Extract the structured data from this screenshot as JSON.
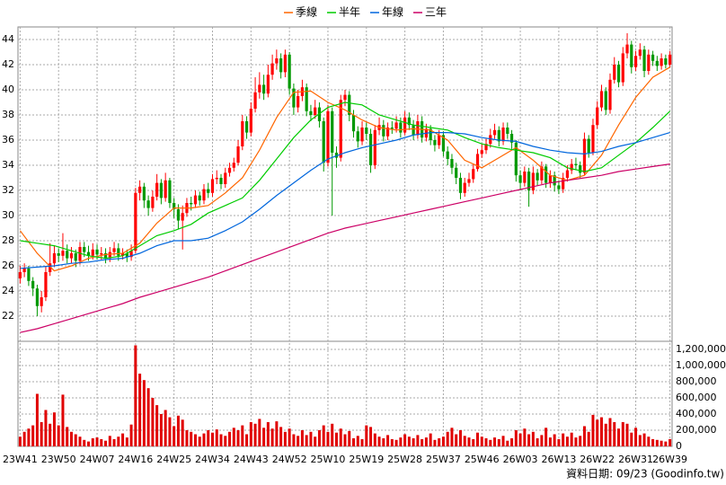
{
  "chart_data": {
    "type": "candlestick",
    "categories": [
      "23W41",
      null,
      null,
      null,
      null,
      null,
      null,
      null,
      null,
      "23W50",
      null,
      null,
      null,
      null,
      null,
      null,
      null,
      null,
      "24W07",
      null,
      null,
      null,
      null,
      null,
      null,
      null,
      null,
      "24W16",
      null,
      null,
      null,
      null,
      null,
      null,
      null,
      null,
      "24W25",
      null,
      null,
      null,
      null,
      null,
      null,
      null,
      null,
      "24W34",
      null,
      null,
      null,
      null,
      null,
      null,
      null,
      null,
      "24W43",
      null,
      null,
      null,
      null,
      null,
      null,
      null,
      null,
      "24W52",
      null,
      null,
      null,
      null,
      null,
      null,
      null,
      null,
      "25W10",
      null,
      null,
      null,
      null,
      null,
      null,
      null,
      null,
      "25W19",
      null,
      null,
      null,
      null,
      null,
      null,
      null,
      null,
      "25W28",
      null,
      null,
      null,
      null,
      null,
      null,
      null,
      null,
      "25W37",
      null,
      null,
      null,
      null,
      null,
      null,
      null,
      null,
      "25W46",
      null,
      null,
      null,
      null,
      null,
      null,
      null,
      null,
      "26W03",
      null,
      null,
      null,
      null,
      null,
      null,
      null,
      null,
      "26W13",
      null,
      null,
      null,
      null,
      null,
      null,
      null,
      null,
      "26W22",
      null,
      null,
      null,
      null,
      null,
      null,
      null,
      null,
      "26W31",
      null,
      null,
      null,
      null,
      null,
      null,
      null,
      "26W39"
    ],
    "open": [
      25.0,
      25.5,
      25.8,
      24.8,
      24.2,
      22.8,
      23.5,
      25.5,
      26.2,
      27.0,
      26.8,
      27.2,
      26.6,
      27.0,
      26.4,
      27.5,
      27.1,
      26.8,
      27.3,
      26.9,
      27.0,
      26.6,
      27.1,
      27.4,
      26.8,
      27.0,
      26.7,
      27.2,
      31.8,
      32.3,
      31.2,
      30.6,
      31.5,
      32.6,
      31.4,
      32.8,
      31.0,
      30.5,
      29.6,
      30.2,
      31.0,
      30.9,
      31.6,
      31.2,
      32.1,
      31.8,
      32.9,
      33.0,
      32.5,
      33.4,
      33.8,
      34.2,
      35.5,
      37.5,
      36.6,
      38.5,
      39.8,
      40.4,
      39.7,
      41.2,
      42.1,
      42.5,
      41.4,
      42.8,
      40.1,
      38.6,
      39.5,
      40.2,
      38.3,
      38.0,
      38.6,
      37.5,
      34.2,
      38.3,
      35.0,
      34.6,
      39.2,
      39.6,
      38.0,
      36.7,
      35.9,
      37.0,
      36.5,
      34.0,
      36.8,
      37.2,
      36.3,
      37.0,
      36.9,
      37.4,
      36.6,
      37.8,
      37.2,
      36.4,
      37.5,
      36.2,
      36.9,
      36.0,
      35.6,
      36.4,
      35.1,
      34.5,
      33.8,
      33.0,
      31.8,
      32.6,
      32.9,
      33.7,
      34.9,
      35.2,
      35.7,
      36.4,
      36.8,
      35.9,
      37.0,
      36.5,
      35.8,
      33.2,
      32.6,
      33.5,
      32.0,
      33.4,
      32.8,
      33.9,
      32.6,
      33.2,
      32.4,
      32.1,
      33.0,
      33.6,
      34.1,
      34.0,
      33.4,
      36.1,
      35.0,
      37.2,
      38.6,
      39.9,
      38.4,
      40.8,
      42.0,
      40.6,
      42.9,
      43.6,
      41.8,
      42.7,
      43.2,
      41.5,
      42.8,
      42.3,
      41.9,
      42.5,
      42.0
    ],
    "high": [
      26.0,
      26.2,
      26.0,
      25.1,
      24.5,
      24.0,
      26.0,
      27.8,
      27.6,
      27.4,
      28.6,
      27.7,
      27.5,
      27.3,
      27.9,
      27.9,
      27.6,
      27.8,
      27.7,
      27.5,
      27.4,
      27.5,
      27.9,
      27.8,
      27.4,
      27.3,
      27.7,
      32.2,
      32.8,
      32.6,
      31.6,
      32.0,
      33.3,
      32.9,
      33.4,
      33.0,
      31.4,
      30.9,
      30.8,
      31.4,
      31.5,
      32.0,
      31.9,
      32.5,
      32.6,
      33.3,
      33.6,
      33.3,
      33.8,
      34.2,
      34.6,
      36.0,
      38.0,
      37.9,
      39.0,
      41.0,
      41.4,
      41.2,
      42.0,
      42.8,
      43.2,
      42.9,
      43.2,
      43.0,
      40.5,
      40.0,
      40.8,
      40.5,
      38.8,
      39.2,
      39.0,
      37.8,
      38.8,
      38.6,
      35.5,
      39.6,
      40.0,
      39.9,
      38.4,
      37.1,
      37.5,
      37.4,
      36.9,
      37.2,
      37.8,
      37.6,
      37.4,
      37.5,
      37.9,
      37.8,
      38.3,
      38.2,
      37.6,
      38.0,
      37.9,
      37.3,
      37.2,
      36.4,
      36.8,
      36.7,
      35.5,
      34.9,
      34.2,
      33.4,
      33.0,
      33.4,
      34.1,
      35.3,
      35.7,
      36.1,
      36.9,
      37.3,
      37.1,
      37.4,
      37.4,
      36.8,
      36.0,
      33.6,
      33.9,
      33.8,
      33.9,
      33.7,
      34.3,
      34.1,
      33.6,
      33.5,
      32.8,
      33.4,
      34.0,
      34.5,
      34.6,
      34.3,
      36.6,
      36.4,
      37.7,
      39.1,
      40.4,
      40.2,
      41.3,
      42.6,
      42.3,
      43.4,
      44.5,
      43.9,
      43.1,
      43.7,
      43.5,
      43.2,
      43.1,
      42.7,
      42.9,
      42.8,
      43.1
    ],
    "low": [
      24.6,
      25.1,
      24.4,
      23.6,
      22.0,
      22.3,
      23.2,
      25.2,
      25.9,
      26.3,
      26.4,
      26.2,
      26.2,
      25.9,
      26.1,
      26.7,
      26.4,
      26.5,
      26.5,
      26.5,
      26.2,
      26.3,
      26.8,
      26.4,
      26.5,
      26.3,
      26.4,
      27.0,
      31.2,
      30.6,
      30.0,
      30.3,
      31.2,
      30.9,
      31.1,
      30.6,
      29.8,
      28.9,
      27.3,
      29.9,
      30.4,
      30.6,
      30.8,
      30.9,
      31.4,
      31.5,
      32.5,
      32.1,
      32.2,
      33.1,
      33.5,
      34.0,
      35.2,
      36.1,
      36.3,
      38.2,
      39.3,
      39.2,
      39.4,
      40.8,
      41.6,
      40.9,
      41.0,
      39.6,
      38.0,
      38.2,
      39.1,
      37.9,
      37.5,
      37.7,
      37.0,
      33.5,
      33.9,
      30.0,
      33.8,
      34.3,
      38.7,
      37.5,
      36.2,
      35.4,
      35.6,
      36.0,
      33.4,
      33.7,
      36.4,
      35.9,
      36.0,
      36.5,
      36.6,
      36.2,
      36.4,
      36.8,
      36.0,
      36.1,
      35.8,
      35.9,
      35.6,
      35.1,
      35.3,
      34.7,
      34.0,
      33.3,
      32.5,
      31.3,
      31.5,
      32.3,
      32.6,
      33.5,
      34.6,
      34.9,
      35.4,
      36.1,
      35.5,
      35.6,
      36.1,
      35.3,
      32.7,
      32.0,
      32.3,
      30.7,
      31.7,
      32.4,
      32.5,
      32.2,
      32.2,
      31.9,
      31.7,
      31.8,
      32.7,
      33.3,
      33.6,
      33.0,
      33.2,
      34.6,
      34.8,
      36.9,
      38.3,
      38.0,
      38.1,
      40.5,
      40.2,
      40.3,
      42.5,
      41.3,
      41.5,
      42.4,
      41.0,
      41.2,
      41.9,
      41.5,
      41.6,
      41.7,
      41.8
    ],
    "close": [
      25.5,
      25.8,
      24.8,
      24.2,
      22.8,
      23.5,
      25.5,
      26.2,
      27.0,
      26.8,
      27.2,
      26.6,
      27.0,
      26.4,
      27.5,
      27.1,
      26.8,
      27.3,
      26.9,
      27.0,
      26.6,
      27.1,
      27.4,
      26.8,
      27.0,
      26.7,
      27.2,
      31.8,
      32.3,
      31.2,
      30.6,
      31.5,
      32.6,
      31.4,
      32.8,
      31.0,
      30.5,
      29.6,
      30.2,
      31.0,
      30.9,
      31.6,
      31.2,
      32.1,
      31.8,
      32.9,
      33.0,
      32.5,
      33.4,
      33.8,
      34.2,
      35.5,
      37.5,
      36.6,
      38.5,
      39.8,
      40.4,
      39.7,
      41.2,
      42.1,
      42.5,
      41.4,
      42.8,
      40.1,
      38.6,
      39.5,
      40.2,
      38.3,
      38.0,
      38.6,
      37.5,
      34.2,
      38.3,
      35.0,
      34.6,
      39.2,
      39.6,
      38.0,
      36.7,
      35.9,
      37.0,
      36.5,
      34.0,
      36.8,
      37.2,
      36.3,
      37.0,
      36.9,
      37.4,
      36.6,
      37.8,
      37.2,
      36.4,
      37.5,
      36.2,
      36.9,
      36.0,
      35.6,
      36.4,
      35.1,
      34.5,
      33.8,
      33.0,
      31.8,
      32.6,
      32.9,
      33.7,
      34.9,
      35.2,
      35.7,
      36.4,
      36.8,
      35.9,
      37.0,
      36.5,
      35.8,
      33.2,
      32.6,
      33.5,
      32.0,
      33.4,
      32.8,
      33.9,
      32.6,
      33.2,
      32.4,
      32.1,
      33.0,
      33.6,
      34.1,
      34.0,
      33.4,
      36.1,
      35.0,
      37.2,
      38.6,
      39.9,
      38.4,
      40.8,
      42.0,
      40.6,
      42.9,
      43.6,
      41.8,
      42.7,
      43.2,
      41.5,
      42.8,
      42.3,
      41.9,
      42.5,
      42.0,
      42.8
    ],
    "up_color": "#ff0000",
    "down_color": "#009900",
    "ylim": [
      20,
      45
    ],
    "yticks": [
      22,
      24,
      26,
      28,
      30,
      32,
      34,
      36,
      38,
      40,
      42,
      44
    ],
    "grid": true,
    "series": [
      {
        "name": "季線",
        "color": "#ff6600",
        "x": [
          0,
          4,
          8,
          12,
          16,
          20,
          24,
          28,
          32,
          36,
          40,
          44,
          48,
          52,
          56,
          60,
          64,
          68,
          72,
          76,
          80,
          84,
          88,
          92,
          96,
          100,
          104,
          108,
          112,
          116,
          120,
          124,
          128,
          132,
          136,
          140,
          144,
          148,
          152
        ],
        "values": [
          28.8,
          27.0,
          25.6,
          26.0,
          26.6,
          26.9,
          27.0,
          27.8,
          29.4,
          30.6,
          30.6,
          30.8,
          31.8,
          33.0,
          35.2,
          37.8,
          39.8,
          39.9,
          39.0,
          38.4,
          37.6,
          37.0,
          36.8,
          36.9,
          36.8,
          36.0,
          34.4,
          33.8,
          34.6,
          35.4,
          34.4,
          33.2,
          32.8,
          33.2,
          34.8,
          37.2,
          39.4,
          41.0,
          41.8
        ]
      },
      {
        "name": "半年",
        "color": "#00cc00",
        "x": [
          0,
          4,
          8,
          12,
          16,
          20,
          24,
          28,
          32,
          36,
          40,
          44,
          48,
          52,
          56,
          60,
          64,
          68,
          72,
          76,
          80,
          84,
          88,
          92,
          96,
          100,
          104,
          108,
          112,
          116,
          120,
          124,
          128,
          132,
          136,
          140,
          144,
          148,
          152
        ],
        "values": [
          28.0,
          27.8,
          27.6,
          27.2,
          26.8,
          26.6,
          26.8,
          27.6,
          28.4,
          28.8,
          29.3,
          30.2,
          30.8,
          31.4,
          32.8,
          34.5,
          36.2,
          37.6,
          38.6,
          39.0,
          38.8,
          38.0,
          37.6,
          37.2,
          37.0,
          36.8,
          36.2,
          35.7,
          35.4,
          35.2,
          35.0,
          34.6,
          33.8,
          33.5,
          33.8,
          34.8,
          35.8,
          37.0,
          38.3
        ]
      },
      {
        "name": "年線",
        "color": "#0066dd",
        "x": [
          0,
          4,
          8,
          12,
          16,
          20,
          24,
          28,
          32,
          36,
          40,
          44,
          48,
          52,
          56,
          60,
          64,
          68,
          72,
          76,
          80,
          84,
          88,
          92,
          96,
          100,
          104,
          108,
          112,
          116,
          120,
          124,
          128,
          132,
          136,
          140,
          144,
          148,
          152
        ],
        "values": [
          25.8,
          25.9,
          26.0,
          26.2,
          26.3,
          26.5,
          26.6,
          27.0,
          27.6,
          28.0,
          28.0,
          28.2,
          28.8,
          29.5,
          30.5,
          31.6,
          32.6,
          33.6,
          34.5,
          35.0,
          35.4,
          35.7,
          36.0,
          36.4,
          36.6,
          36.6,
          36.5,
          36.2,
          36.0,
          35.9,
          35.5,
          35.2,
          35.0,
          34.9,
          35.1,
          35.5,
          35.8,
          36.2,
          36.6
        ]
      },
      {
        "name": "三年",
        "color": "#cc0066",
        "x": [
          0,
          4,
          8,
          12,
          16,
          20,
          24,
          28,
          32,
          36,
          40,
          44,
          48,
          52,
          56,
          60,
          64,
          68,
          72,
          76,
          80,
          84,
          88,
          92,
          96,
          100,
          104,
          108,
          112,
          116,
          120,
          124,
          128,
          132,
          136,
          140,
          144,
          148,
          152
        ],
        "values": [
          20.7,
          21.0,
          21.4,
          21.8,
          22.2,
          22.6,
          23.0,
          23.5,
          23.9,
          24.3,
          24.7,
          25.1,
          25.6,
          26.1,
          26.6,
          27.1,
          27.6,
          28.1,
          28.6,
          29.0,
          29.3,
          29.6,
          29.9,
          30.2,
          30.5,
          30.8,
          31.1,
          31.4,
          31.7,
          32.0,
          32.3,
          32.6,
          32.8,
          33.0,
          33.2,
          33.5,
          33.7,
          33.9,
          34.1
        ]
      }
    ],
    "volume": {
      "color": "#e00000",
      "ylim": [
        0,
        1300000
      ],
      "yticks": [
        0,
        {
          "value": 200000,
          "label": "200,000"
        },
        {
          "value": 400000,
          "label": "400,000"
        },
        {
          "value": 600000,
          "label": "600,000"
        },
        {
          "value": 800000,
          "label": "800,000"
        },
        {
          "value": 1000000,
          "label": "1,000,000"
        },
        {
          "value": 1200000,
          "label": "1,200,000"
        }
      ],
      "values": [
        120000,
        180000,
        220000,
        260000,
        650000,
        300000,
        450000,
        280000,
        420000,
        260000,
        640000,
        240000,
        180000,
        150000,
        120000,
        80000,
        60000,
        100000,
        110000,
        90000,
        70000,
        130000,
        90000,
        120000,
        160000,
        110000,
        270000,
        1250000,
        900000,
        820000,
        720000,
        600000,
        510000,
        400000,
        450000,
        360000,
        250000,
        380000,
        330000,
        200000,
        180000,
        150000,
        120000,
        160000,
        200000,
        170000,
        210000,
        150000,
        130000,
        180000,
        230000,
        200000,
        260000,
        150000,
        300000,
        280000,
        340000,
        230000,
        300000,
        220000,
        310000,
        240000,
        180000,
        220000,
        150000,
        130000,
        200000,
        140000,
        180000,
        120000,
        200000,
        260000,
        180000,
        280000,
        170000,
        220000,
        150000,
        190000,
        100000,
        130000,
        90000,
        260000,
        240000,
        160000,
        120000,
        100000,
        140000,
        90000,
        80000,
        110000,
        150000,
        120000,
        100000,
        140000,
        90000,
        110000,
        160000,
        80000,
        100000,
        120000,
        180000,
        230000,
        150000,
        200000,
        130000,
        110000,
        90000,
        170000,
        120000,
        100000,
        80000,
        110000,
        90000,
        130000,
        70000,
        100000,
        200000,
        160000,
        220000,
        150000,
        180000,
        100000,
        140000,
        230000,
        110000,
        150000,
        90000,
        160000,
        120000,
        170000,
        110000,
        130000,
        250000,
        180000,
        390000,
        330000,
        360000,
        280000,
        350000,
        300000,
        220000,
        300000,
        280000,
        170000,
        230000,
        140000,
        160000,
        120000,
        90000,
        80000,
        70000,
        60000,
        90000
      ]
    },
    "footnote": "資料日期: 09/23  (Goodinfo.tw)"
  }
}
